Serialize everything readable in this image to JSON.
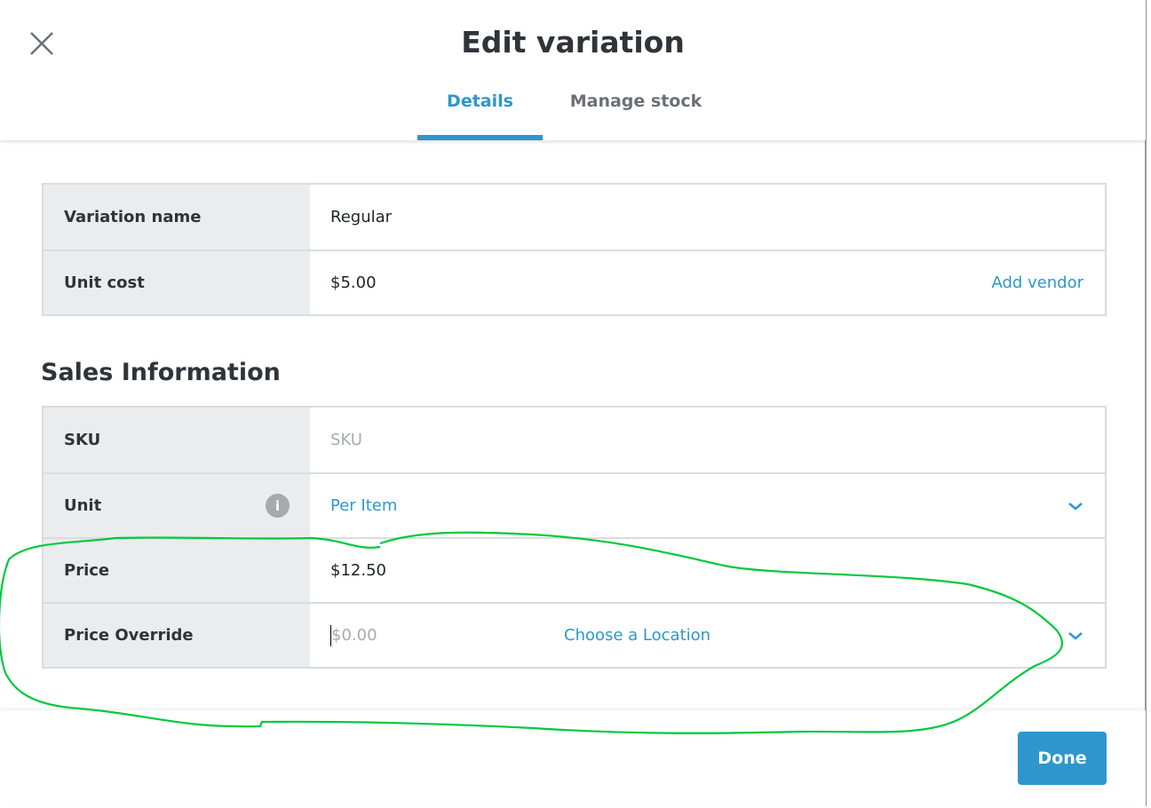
{
  "header": {
    "title": "Edit variation",
    "tabs": [
      {
        "label": "Details",
        "active": true
      },
      {
        "label": "Manage stock",
        "active": false
      }
    ]
  },
  "details": {
    "rows": [
      {
        "label": "Variation name",
        "value": "Regular"
      },
      {
        "label": "Unit cost",
        "value": "$5.00",
        "link": "Add vendor"
      }
    ]
  },
  "sales": {
    "title": "Sales Information",
    "rows": [
      {
        "label": "SKU",
        "placeholder": "SKU"
      },
      {
        "label": "Unit",
        "value": "Per Item",
        "icon": "info-icon"
      },
      {
        "label": "Price",
        "value": "$12.50"
      },
      {
        "label": "Price Override",
        "placeholder": "$0.00",
        "location": "Choose a Location"
      }
    ]
  },
  "footer": {
    "done_label": "Done"
  },
  "colors": {
    "accent": "#2d97cd",
    "annotation": "#00c83c"
  }
}
